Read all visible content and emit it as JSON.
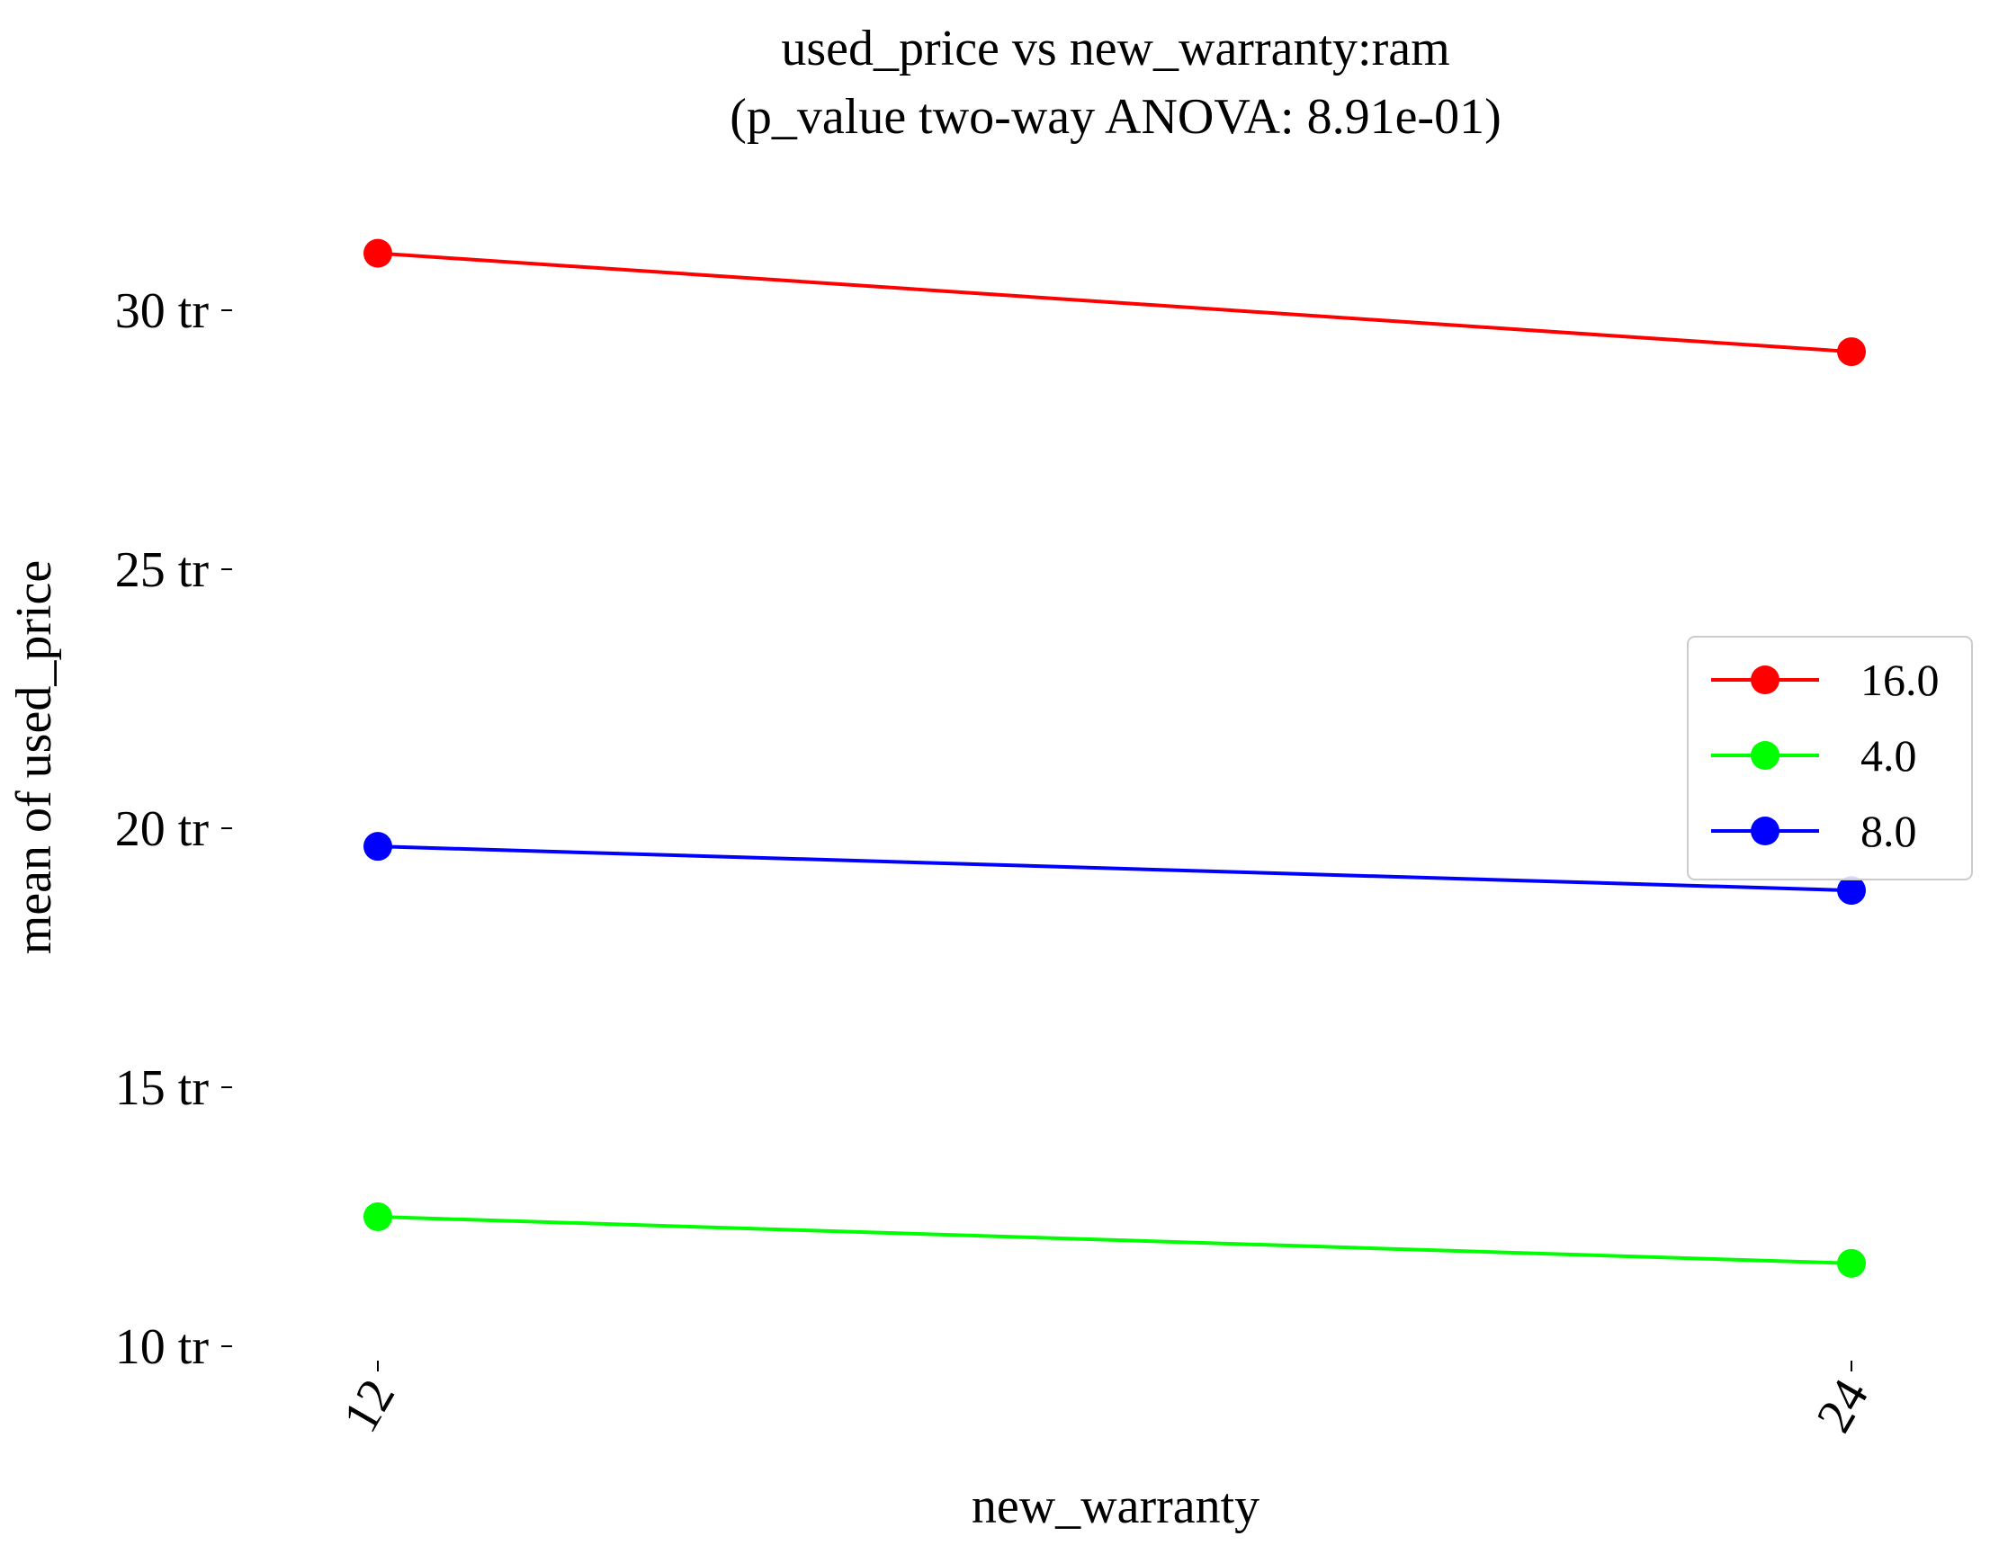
{
  "chart_data": {
    "type": "line",
    "title": "used_price vs new_warranty:ram",
    "subtitle": "(p_value two-way ANOVA: 8.91e-01)",
    "xlabel": "new_warranty",
    "ylabel": "mean of used_price",
    "categories": [
      "12",
      "24"
    ],
    "y_ticks": [
      {
        "value": 10,
        "label": "10 tr"
      },
      {
        "value": 15,
        "label": "15 tr"
      },
      {
        "value": 20,
        "label": "20 tr"
      },
      {
        "value": 25,
        "label": "25 tr"
      },
      {
        "value": 30,
        "label": "30 tr"
      }
    ],
    "ylim": [
      8.5,
      32.5
    ],
    "grid": false,
    "legend_position": "right",
    "series": [
      {
        "name": "16.0",
        "color": "#ff0000",
        "values": [
          31.1,
          29.2
        ]
      },
      {
        "name": "4.0",
        "color": "#00ff00",
        "values": [
          12.5,
          11.6
        ]
      },
      {
        "name": "8.0",
        "color": "#0000ff",
        "values": [
          19.65,
          18.8
        ]
      }
    ]
  }
}
